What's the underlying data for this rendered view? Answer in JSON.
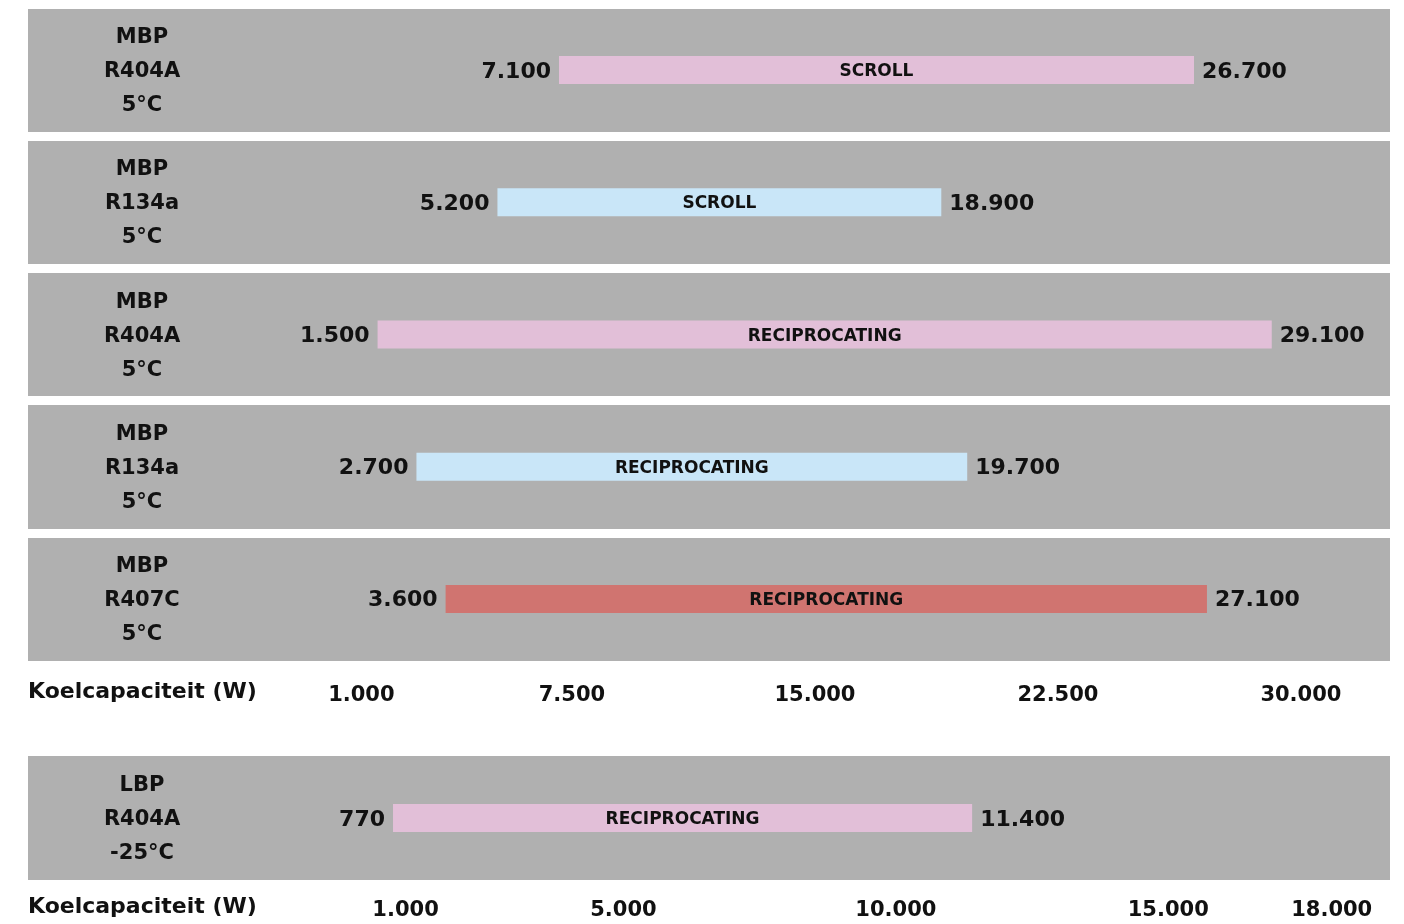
{
  "chart_data": [
    {
      "type": "bar",
      "orientation": "horizontal",
      "xlabel": "Koelcapaciteit (W)",
      "categories": [
        "MBP\nR404A\n5°C",
        "MBP\nR134a\n5°C",
        "MBP\nR404A\n5°C",
        "MBP\nR134a\n5°C",
        "MBP\nR407C\n5°C"
      ],
      "base": [
        7100,
        5200,
        1500,
        2700,
        3600
      ],
      "values": [
        19600,
        13700,
        27600,
        17000,
        23500
      ],
      "colors": [
        "#e2bfd8",
        "#c9e6f8",
        "#e2bfd8",
        "#c9e6f8",
        "#d07470"
      ],
      "value_labels": [
        [
          "7.100",
          "26.700"
        ],
        [
          "5.200",
          "18.900"
        ],
        [
          "1.500",
          "29.100"
        ],
        [
          "2.700",
          "19.700"
        ],
        [
          "3.600",
          "27.100"
        ]
      ],
      "annotations": [
        "SCROLL",
        "SCROLL",
        "RECIPROCATING",
        "RECIPROCATING",
        "RECIPROCATING"
      ],
      "xlim": [
        -9290,
        32750
      ],
      "xticks": [
        {
          "value": 1000,
          "label": "1.000"
        },
        {
          "value": 7500,
          "label": "7.500"
        },
        {
          "value": 15000,
          "label": "15.000"
        },
        {
          "value": 22500,
          "label": "22.500"
        },
        {
          "value": 30000,
          "label": "30.000"
        }
      ]
    },
    {
      "type": "bar",
      "orientation": "horizontal",
      "xlabel": "Koelcapaciteit (W)",
      "categories": [
        "LBP\nR404A\n-25°C"
      ],
      "base": [
        770
      ],
      "values": [
        10630
      ],
      "colors": [
        "#e2bfd8"
      ],
      "value_labels": [
        [
          "770",
          "11.400"
        ]
      ],
      "annotations": [
        "RECIPROCATING"
      ],
      "xlim": [
        -5930,
        19070
      ],
      "xticks": [
        {
          "value": 1000,
          "label": "1.000"
        },
        {
          "value": 5000,
          "label": "5.000"
        },
        {
          "value": 10000,
          "label": "10.000"
        },
        {
          "value": 15000,
          "label": "15.000"
        },
        {
          "value": 18000,
          "label": "18.000"
        }
      ]
    }
  ]
}
